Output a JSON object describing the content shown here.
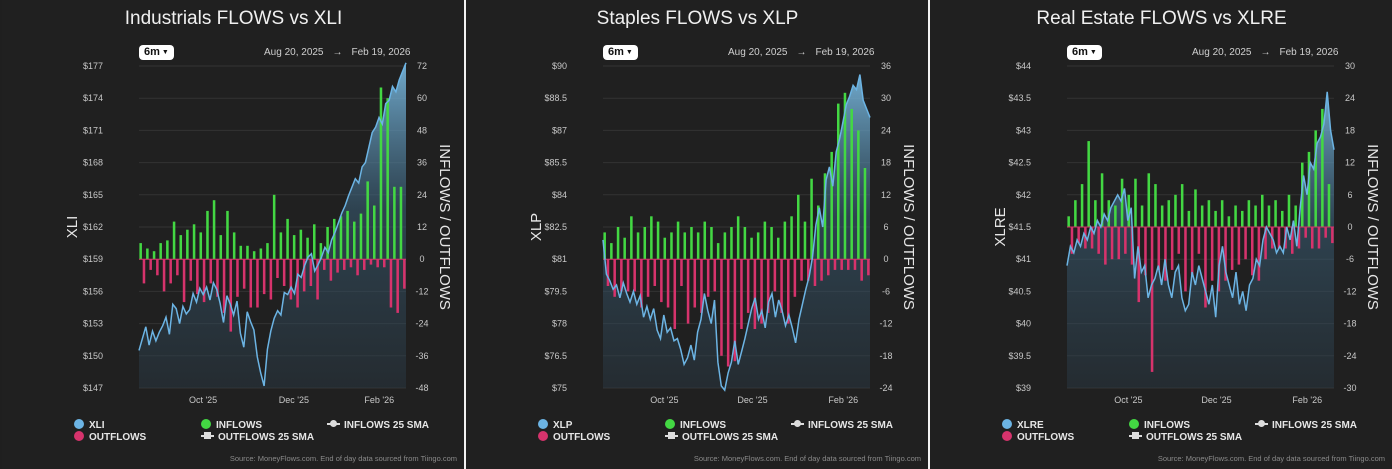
{
  "common": {
    "range_button": "6m",
    "date_from": "Aug 20, 2025",
    "date_arrow": "→",
    "date_to": "Feb 19, 2026",
    "source": "Source: MoneyFlows.com. End of day data sourced from Tiingo.com",
    "legend": {
      "inflows": "INFLOWS",
      "outflows": "OUTFLOWS",
      "outflows_sma": "OUTFLOWS 25 SMA",
      "inflows_sma": "INFLOWS 25 SMA"
    },
    "colors": {
      "background": "#202020",
      "price_line": "#6cb4e4",
      "inflows": "#43d843",
      "outflows": "#d6336c",
      "grid": "#333333"
    }
  },
  "chart_data": [
    {
      "type": "bar",
      "title": "Industrials FLOWS vs XLI",
      "ticker": "XLI",
      "ylabel": "XLI",
      "y2label": "INFLOWS / OUTFLOWS",
      "ylim": [
        147,
        177
      ],
      "y_ticks": [
        "$147",
        "$150",
        "$153",
        "$156",
        "$159",
        "$162",
        "$165",
        "$168",
        "$171",
        "$174",
        "$177"
      ],
      "y2lim": [
        -48,
        72
      ],
      "y2_ticks": [
        "-48",
        "-36",
        "-24",
        "-12",
        "0",
        "12",
        "24",
        "36",
        "48",
        "60",
        "72"
      ],
      "x_ticks": [
        "Oct '25",
        "Dec '25",
        "Feb '26"
      ],
      "x_tick_positions": [
        0.24,
        0.58,
        0.9
      ],
      "series": [
        {
          "name": "XLI",
          "values": [
            150.5,
            151.6,
            152.7,
            151.0,
            152.3,
            151.4,
            152.2,
            152.8,
            153.6,
            152.0,
            154.8,
            154.4,
            153.0,
            154.6,
            153.9,
            154.3,
            155.8,
            155.0,
            156.3,
            155.7,
            156.4,
            155.2,
            156.8,
            156.2,
            154.9,
            153.1,
            155.6,
            154.8,
            153.8,
            155.1,
            152.1,
            150.8,
            154.1,
            153.2,
            152.4,
            149.9,
            148.4,
            147.2,
            150.6,
            152.3,
            153.5,
            154.2,
            153.8,
            155.9,
            155.7,
            156.4,
            155.8,
            157.6,
            157.3,
            158.4,
            159.2,
            159.5,
            157.9,
            158.5,
            159.2,
            160.1,
            159.6,
            160.8,
            161.5,
            162.4,
            163.3,
            164.0,
            164.9,
            165.7,
            166.5,
            166.1,
            167.6,
            168.0,
            169.4,
            170.8,
            171.3,
            172.2,
            171.6,
            173.5,
            173.8,
            175.1,
            174.6,
            175.7,
            176.5,
            177.3
          ]
        },
        {
          "name": "INFLOWS / OUTFLOWS",
          "values": [
            6,
            -9,
            4,
            -4,
            3,
            -6,
            6,
            -12,
            7,
            -9,
            14,
            -6,
            9,
            -16,
            11,
            -8,
            13,
            -13,
            10,
            -16,
            18,
            -9,
            22,
            -14,
            9,
            -20,
            18,
            -27,
            10,
            -14,
            5,
            -11,
            5,
            -18,
            3,
            -18,
            4,
            -13,
            6,
            -15,
            24,
            -7,
            10,
            -10,
            15,
            -15,
            9,
            -18,
            11,
            -12,
            8,
            -10,
            13,
            -15,
            6,
            -4,
            12,
            -8,
            15,
            -5,
            16,
            -4,
            18,
            -3,
            14,
            -6,
            17,
            -4,
            29,
            -2,
            20,
            -3,
            64,
            -3,
            60,
            -18,
            27,
            -20,
            27,
            -11
          ]
        },
        {
          "name": "OUTFLOWS",
          "values": []
        }
      ]
    },
    {
      "type": "bar",
      "title": "Staples FLOWS vs XLP",
      "ticker": "XLP",
      "ylabel": "XLP",
      "y2label": "INFLOWS / OUTFLOWS",
      "ylim": [
        75,
        90
      ],
      "y_ticks": [
        "$75",
        "$76.5",
        "$78",
        "$79.5",
        "$81",
        "$82.5",
        "$84",
        "$85.5",
        "$87",
        "$88.5",
        "$90"
      ],
      "y2lim": [
        -24,
        36
      ],
      "y2_ticks": [
        "-24",
        "-18",
        "-12",
        "-6",
        "0",
        "6",
        "12",
        "18",
        "24",
        "30",
        "36"
      ],
      "x_ticks": [
        "Oct '25",
        "Dec '25",
        "Feb '26"
      ],
      "x_tick_positions": [
        0.23,
        0.56,
        0.9
      ],
      "series": [
        {
          "name": "XLP",
          "values": [
            81.9,
            80.3,
            80.0,
            79.6,
            79.8,
            79.2,
            79.9,
            79.4,
            79.0,
            79.5,
            78.9,
            79.3,
            78.3,
            78.8,
            78.2,
            78.7,
            77.7,
            77.3,
            78.4,
            77.6,
            77.8,
            77.2,
            77.3,
            76.8,
            76.1,
            76.4,
            77.0,
            76.3,
            77.6,
            78.2,
            79.4,
            78.6,
            78.0,
            79.1,
            76.2,
            75.1,
            74.9,
            75.7,
            76.2,
            77.2,
            76.1,
            76.7,
            77.3,
            78.0,
            78.7,
            79.2,
            78.2,
            78.6,
            77.8,
            79.0,
            79.4,
            78.3,
            79.1,
            78.6,
            77.9,
            78.4,
            77.8,
            77.1,
            78.2,
            78.9,
            79.6,
            80.2,
            81.1,
            82.6,
            83.4,
            82.5,
            84.7,
            85.3,
            84.4,
            86.0,
            86.6,
            87.4,
            88.2,
            88.6,
            89.1,
            88.9,
            89.6,
            88.4,
            88.0,
            87.6
          ]
        },
        {
          "name": "INFLOWS / OUTFLOWS",
          "values": [
            5,
            -5,
            3,
            -7,
            6,
            -6,
            4,
            -6,
            8,
            -6,
            5,
            -9,
            6,
            -7,
            8,
            -5,
            7,
            -8,
            4,
            -9,
            5,
            -13,
            7,
            -5,
            5,
            -12,
            6,
            -9,
            5,
            -10,
            7,
            -7,
            6,
            -6,
            3,
            -18,
            5,
            -20,
            6,
            -19,
            8,
            -13,
            6,
            -10,
            4,
            -13,
            5,
            -12,
            7,
            -10,
            6,
            -6,
            4,
            -10,
            7,
            -12,
            8,
            -7,
            12,
            -4,
            7,
            -4,
            15,
            -5,
            10,
            -4,
            16,
            -3,
            20,
            -2,
            29,
            -2,
            31,
            -2,
            28,
            -2,
            24,
            -4,
            17,
            -3
          ]
        },
        {
          "name": "OUTFLOWS",
          "values": []
        }
      ]
    },
    {
      "type": "bar",
      "title": "Real Estate FLOWS vs XLRE",
      "ticker": "XLRE",
      "ylabel": "XLRE",
      "y2label": "INFLOWS / OUTFLOWS",
      "ylim": [
        39,
        44
      ],
      "y_ticks": [
        "$39",
        "$39.5",
        "$40",
        "$40.5",
        "$41",
        "$41.5",
        "$42",
        "$42.5",
        "$43",
        "$43.5",
        "$44"
      ],
      "y2lim": [
        -30,
        30
      ],
      "y2_ticks": [
        "-30",
        "-24",
        "-18",
        "-12",
        "-6",
        "0",
        "6",
        "12",
        "18",
        "24",
        "30"
      ],
      "x_ticks": [
        "Oct '25",
        "Dec '25",
        "Feb '26"
      ],
      "x_tick_positions": [
        0.23,
        0.56,
        0.9
      ],
      "series": [
        {
          "name": "XLRE",
          "values": [
            40.9,
            41.2,
            41.1,
            41.3,
            41.2,
            41.4,
            41.3,
            41.5,
            41.4,
            41.6,
            41.5,
            41.7,
            41.6,
            41.8,
            41.9,
            42.0,
            41.9,
            42.1,
            41.6,
            41.8,
            40.7,
            41.2,
            40.8,
            40.9,
            40.4,
            40.6,
            40.7,
            40.9,
            40.6,
            41.0,
            40.6,
            40.4,
            40.8,
            40.9,
            40.4,
            40.2,
            40.3,
            40.8,
            40.6,
            40.9,
            40.7,
            40.5,
            40.3,
            40.6,
            40.1,
            40.9,
            41.2,
            40.8,
            40.6,
            40.4,
            40.8,
            40.3,
            40.5,
            40.2,
            40.6,
            40.7,
            41.0,
            40.9,
            41.3,
            41.5,
            41.4,
            41.3,
            41.1,
            41.2,
            41.1,
            41.5,
            41.3,
            41.6,
            41.2,
            41.8,
            42.3,
            42.0,
            42.5,
            42.4,
            42.8,
            42.9,
            43.1,
            43.6,
            43.0,
            42.7
          ]
        },
        {
          "name": "INFLOWS / OUTFLOWS",
          "values": [
            2,
            -5,
            5,
            -3,
            8,
            -4,
            16,
            -4,
            5,
            -5,
            10,
            -7,
            5,
            -6,
            4,
            -6,
            9,
            -5,
            6,
            -7,
            9,
            -14,
            4,
            -9,
            10,
            -27,
            8,
            -8,
            4,
            -10,
            5,
            -8,
            6,
            -5,
            8,
            -12,
            3,
            -9,
            7,
            -5,
            4,
            -15,
            5,
            -10,
            3,
            -12,
            5,
            -10,
            2,
            -8,
            4,
            -7,
            3,
            -6,
            5,
            -9,
            4,
            -10,
            6,
            -6,
            4,
            -4,
            5,
            -4,
            3,
            -4,
            6,
            -5,
            4,
            -4,
            12,
            -2,
            14,
            -4,
            18,
            -4,
            22,
            -2,
            8,
            -3
          ]
        },
        {
          "name": "OUTFLOWS",
          "values": []
        }
      ]
    }
  ]
}
